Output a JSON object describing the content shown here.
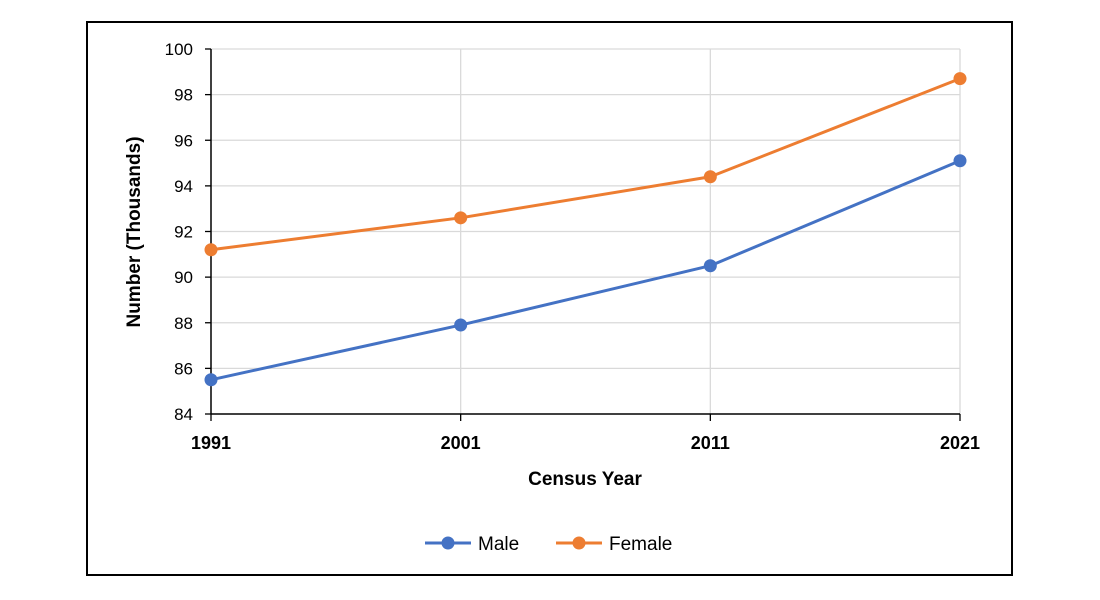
{
  "chart_data": {
    "type": "line",
    "title": "",
    "xlabel": "Census Year",
    "ylabel": "Number (Thousands)",
    "categories": [
      "1991",
      "2001",
      "2011",
      "2021"
    ],
    "ylim": [
      84,
      100
    ],
    "yticks": [
      84,
      86,
      88,
      90,
      92,
      94,
      96,
      98,
      100
    ],
    "grid": true,
    "legend_position": "bottom",
    "series": [
      {
        "name": "Male",
        "color": "#4472C4",
        "values": [
          85.5,
          87.9,
          90.5,
          95.1
        ]
      },
      {
        "name": "Female",
        "color": "#ED7D31",
        "values": [
          91.2,
          92.6,
          94.4,
          98.7
        ]
      }
    ]
  }
}
